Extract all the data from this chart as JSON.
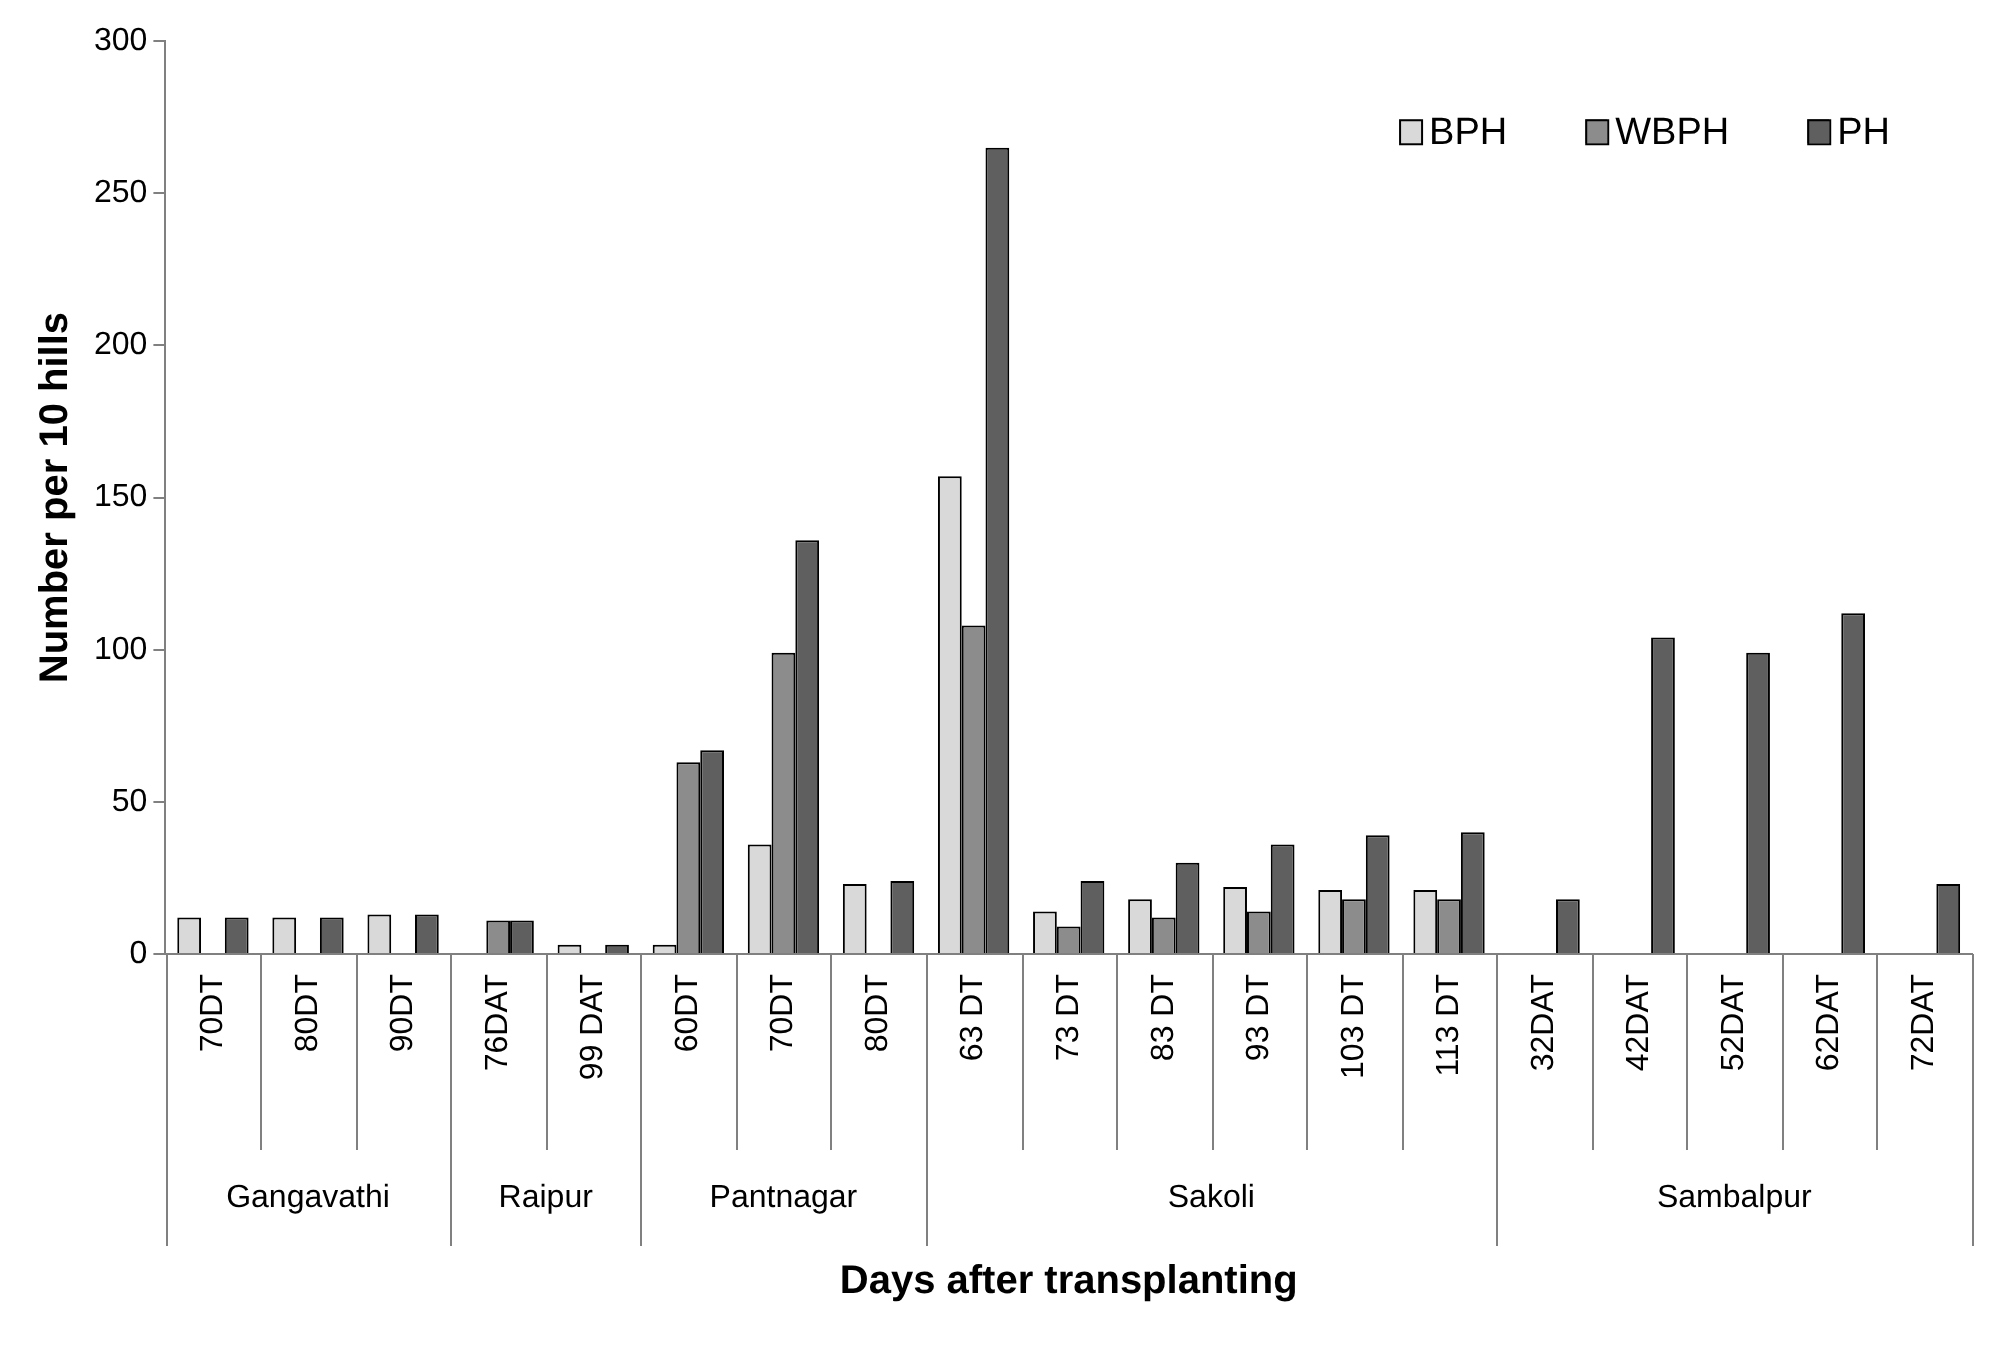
{
  "chart_data": {
    "type": "bar",
    "xlabel": "Days after transplanting",
    "ylabel": "Number per 10 hills",
    "categories": [
      "70DT",
      "80DT",
      "90DT",
      "76DAT",
      "99 DAT",
      "60DT",
      "70DT",
      "80DT",
      "63 DT",
      "73 DT",
      "83 DT",
      "93 DT",
      "103 DT",
      "113 DT",
      "32DAT",
      "42DAT",
      "52DAT",
      "62DAT",
      "72DAT"
    ],
    "series": [
      {
        "name": "BPH",
        "color": "#d9d9d9",
        "values": [
          12,
          12,
          13,
          0,
          3,
          3,
          36,
          23,
          157,
          14,
          18,
          22,
          21,
          21,
          0,
          0,
          0,
          0,
          0
        ]
      },
      {
        "name": "WBPH",
        "color": "#8c8c8c",
        "values": [
          0,
          0,
          0,
          11,
          0,
          63,
          99,
          0,
          108,
          9,
          12,
          14,
          18,
          18,
          0,
          0,
          0,
          0,
          0
        ]
      },
      {
        "name": "PH",
        "color": "#5f5f5f",
        "values": [
          12,
          12,
          13,
          11,
          3,
          67,
          136,
          24,
          265,
          24,
          30,
          36,
          39,
          40,
          18,
          104,
          99,
          112,
          23
        ]
      }
    ],
    "annotations": [
      "Gangavathi",
      "Raipur",
      "Pantnagar",
      "Sakoli",
      "Sambalpur"
    ],
    "ylim": [
      0,
      300
    ],
    "yticks": [
      0,
      50,
      100,
      150,
      200,
      250,
      300
    ],
    "grid": false,
    "legend": "top right"
  }
}
